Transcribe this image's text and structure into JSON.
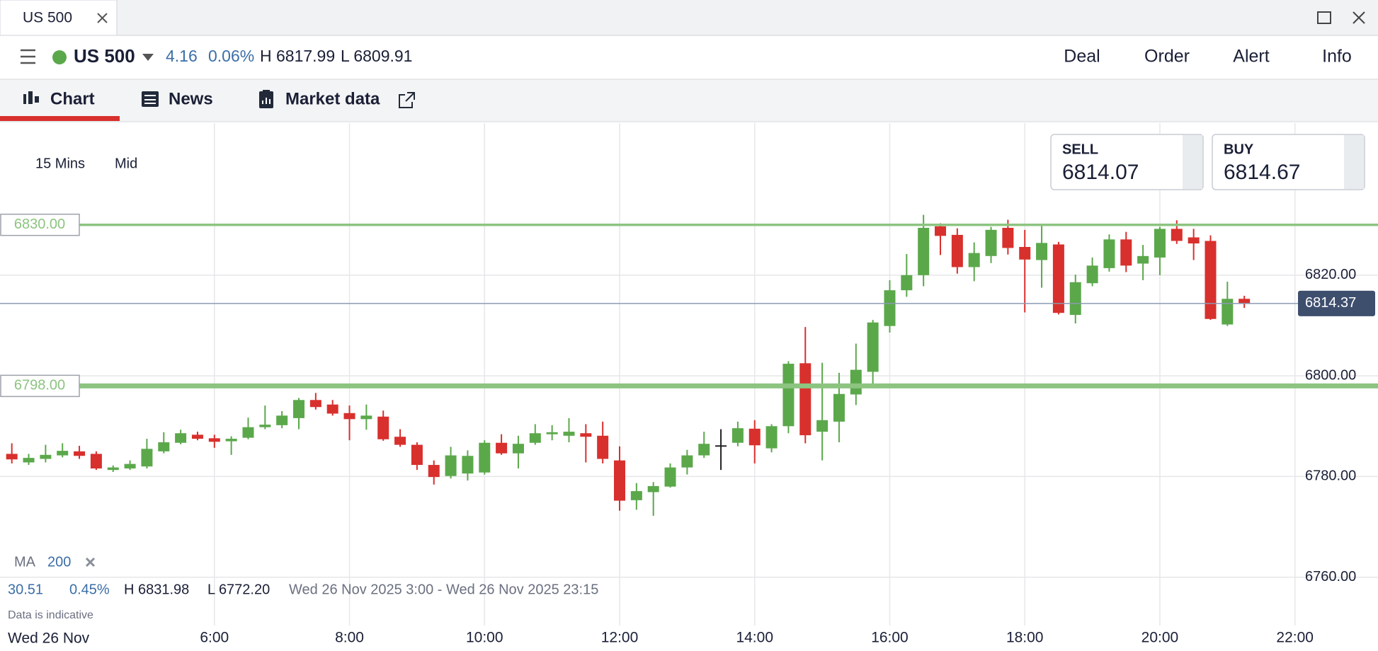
{
  "window": {
    "tab": "US 500"
  },
  "header": {
    "instrument": "US 500",
    "change": "4.16",
    "change_pct": "0.06%",
    "high": "H 6817.99",
    "low": "L 6809.91",
    "actions": [
      "Deal",
      "Order",
      "Alert",
      "Info"
    ]
  },
  "tabs": [
    "Chart",
    "News",
    "Market data"
  ],
  "controls": {
    "interval": "15 Mins",
    "price_type": "Mid"
  },
  "quotes": {
    "sell_label": "SELL",
    "sell": "6814.07",
    "buy_label": "BUY",
    "buy": "6814.67"
  },
  "indicator": {
    "name": "MA",
    "period": "200"
  },
  "stats": {
    "change": "30.51",
    "change_pct": "0.45%",
    "high": "H 6831.98",
    "low": "L 6772.20",
    "range": "Wed 26 Nov 2025 3:00 - Wed 26 Nov 2025 23:15",
    "note": "Data is indicative",
    "date": "Wed 26 Nov"
  },
  "chart_data": {
    "type": "candlestick",
    "grid": true,
    "up_color": "#5ba84b",
    "down_color": "#d8302d",
    "doji_color": "#222222",
    "level_color": "#8cc480",
    "last_price_color": "#3e4f6e",
    "xlim": [
      2.825,
      23.23
    ],
    "ylim": [
      6750.4,
      6850.2
    ],
    "xticks": [
      {
        "value": 6,
        "label": "6:00"
      },
      {
        "value": 8,
        "label": "8:00"
      },
      {
        "value": 10,
        "label": "10:00"
      },
      {
        "value": 12,
        "label": "12:00"
      },
      {
        "value": 14,
        "label": "14:00"
      },
      {
        "value": 16,
        "label": "16:00"
      },
      {
        "value": 18,
        "label": "18:00"
      },
      {
        "value": 20,
        "label": "20:00"
      },
      {
        "value": 22,
        "label": "22:00"
      }
    ],
    "yticks": [
      {
        "value": 6760,
        "label": "6760.00"
      },
      {
        "value": 6780,
        "label": "6780.00"
      },
      {
        "value": 6800,
        "label": "6800.00"
      },
      {
        "value": 6820,
        "label": "6820.00"
      }
    ],
    "levels": [
      {
        "value": 6830,
        "label": "6830.00"
      },
      {
        "value": 6798,
        "label": "6798.00"
      }
    ],
    "last_price": 6814.37,
    "x": [
      3,
      3.25,
      3.5,
      3.75,
      4,
      4.25,
      4.5,
      4.75,
      5,
      5.25,
      5.5,
      5.75,
      6,
      6.25,
      6.5,
      6.75,
      7,
      7.25,
      7.5,
      7.75,
      8,
      8.25,
      8.5,
      8.75,
      9,
      9.25,
      9.5,
      9.75,
      10,
      10.25,
      10.5,
      10.75,
      11,
      11.25,
      11.5,
      11.75,
      12,
      12.25,
      12.5,
      12.75,
      13,
      13.25,
      13.5,
      13.75,
      14,
      14.25,
      14.5,
      14.75,
      15,
      15.25,
      15.5,
      15.75,
      16,
      16.25,
      16.5,
      16.75,
      17,
      17.25,
      17.5,
      17.75,
      18,
      18.25,
      18.5,
      18.75,
      19,
      19.25,
      19.5,
      19.75,
      20,
      20.25,
      20.5,
      20.75,
      21,
      21.25
    ],
    "open": [
      6784.5,
      6782.8,
      6783.5,
      6784.2,
      6785,
      6784.5,
      6781.3,
      6781.6,
      6782,
      6785,
      6786.7,
      6788.3,
      6787.6,
      6787,
      6787.7,
      6789.8,
      6790.2,
      6791.6,
      6795.2,
      6794.3,
      6792.6,
      6791.4,
      6791.9,
      6787.9,
      6786.3,
      6782.3,
      6780.1,
      6780.6,
      6780.8,
      6786.7,
      6784.6,
      6786.7,
      6788.4,
      6788.1,
      6788.6,
      6788.1,
      6783.2,
      6775.3,
      6776.9,
      6778,
      6781.8,
      6784.2,
      6786.2,
      6786.7,
      6789.5,
      6785.6,
      6790,
      6802.5,
      6788.9,
      6790.9,
      6796.3,
      6800.8,
      6809.9,
      6817,
      6820,
      6829.7,
      6828,
      6821.6,
      6823.8,
      6829.4,
      6825.6,
      6823,
      6826.1,
      6812.1,
      6818.4,
      6821.4,
      6827.1,
      6822.3,
      6823.5,
      6829.2,
      6827.5,
      6826.8,
      6810.2,
      6815.3
    ],
    "high": [
      6786.6,
      6784.5,
      6786.3,
      6786.6,
      6786.1,
      6785,
      6782.2,
      6783.2,
      6787.5,
      6788.8,
      6789.3,
      6788.9,
      6788.3,
      6788,
      6791.7,
      6794.1,
      6793,
      6795.6,
      6796.6,
      6795.2,
      6794.1,
      6794.3,
      6793.1,
      6789.4,
      6786.8,
      6783.2,
      6785.9,
      6785.2,
      6787.2,
      6788.4,
      6788.1,
      6790.4,
      6790.2,
      6791.6,
      6790.4,
      6790.9,
      6786,
      6778.7,
      6778.9,
      6782.6,
      6785.3,
      6788.9,
      6789.4,
      6790.9,
      6791.2,
      6790.4,
      6802.9,
      6809.7,
      6802.6,
      6800.6,
      6806.4,
      6811.1,
      6819,
      6824.2,
      6831.98,
      6830.3,
      6829.3,
      6826.5,
      6829.6,
      6831,
      6829,
      6829.8,
      6826.6,
      6820.1,
      6823.5,
      6828.1,
      6828.6,
      6826,
      6829.6,
      6830.9,
      6829.2,
      6827.9,
      6818.7,
      6815.9
    ],
    "low": [
      6782.6,
      6782.3,
      6782.8,
      6783.8,
      6783.5,
      6781.3,
      6780.9,
      6781.3,
      6781.6,
      6784.6,
      6786.4,
      6787.2,
      6785.7,
      6784.3,
      6787.4,
      6789.4,
      6789.6,
      6789.4,
      6793.3,
      6792.1,
      6787.2,
      6789.3,
      6787.1,
      6785.9,
      6781.3,
      6778.4,
      6779.6,
      6779.2,
      6780.4,
      6784.3,
      6781.6,
      6786.3,
      6787.2,
      6786.8,
      6782.8,
      6782.6,
      6773.2,
      6773.4,
      6772.2,
      6777.8,
      6780.4,
      6783.7,
      6781.3,
      6786,
      6782.6,
      6784.8,
      6788.6,
      6786.6,
      6783.2,
      6786.8,
      6794.2,
      6798,
      6808.6,
      6815.7,
      6817.8,
      6824,
      6820.3,
      6818.8,
      6822.4,
      6824.1,
      6812.6,
      6817.5,
      6812.2,
      6810.4,
      6817.8,
      6820.7,
      6820.6,
      6819,
      6820,
      6826.2,
      6823,
      6811.1,
      6809.9,
      6813.5
    ],
    "close": [
      6783.4,
      6783.7,
      6784.3,
      6785.1,
      6784.1,
      6781.6,
      6781.8,
      6782.5,
      6785.5,
      6786.8,
      6788.6,
      6787.5,
      6786.9,
      6787.5,
      6789.8,
      6790.3,
      6792.1,
      6795.2,
      6793.8,
      6792.5,
      6791.4,
      6792.1,
      6787.4,
      6786.3,
      6782.3,
      6779.9,
      6784.2,
      6784.1,
      6786.7,
      6784.6,
      6786.5,
      6788.6,
      6788.8,
      6788.9,
      6787.9,
      6783.5,
      6775.2,
      6777.1,
      6778.1,
      6781.8,
      6784.2,
      6786.5,
      6786.2,
      6789.6,
      6786.2,
      6790,
      6802.4,
      6788.2,
      6791.2,
      6796.4,
      6801.2,
      6810.6,
      6817,
      6820,
      6829.4,
      6827.8,
      6821.6,
      6824.4,
      6829,
      6825.4,
      6823.1,
      6826.4,
      6812.5,
      6818.6,
      6821.9,
      6827.1,
      6821.9,
      6823.8,
      6829.2,
      6826.8,
      6826.3,
      6811.3,
      6815.3,
      6814.37
    ]
  }
}
